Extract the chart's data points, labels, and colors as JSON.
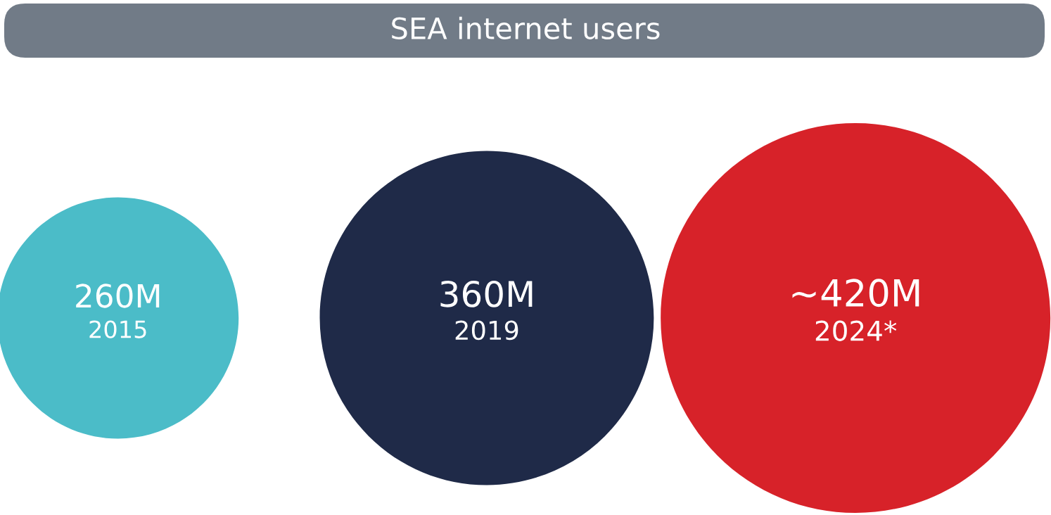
{
  "chart_data": {
    "type": "other",
    "title": "SEA internet users",
    "categories": [
      "2015",
      "2019",
      "2024*"
    ],
    "values": [
      260,
      360,
      420
    ],
    "value_labels": [
      "260M",
      "360M",
      "~420M"
    ],
    "colors": [
      "#4bbcc8",
      "#1f2a48",
      "#d72229"
    ]
  }
}
